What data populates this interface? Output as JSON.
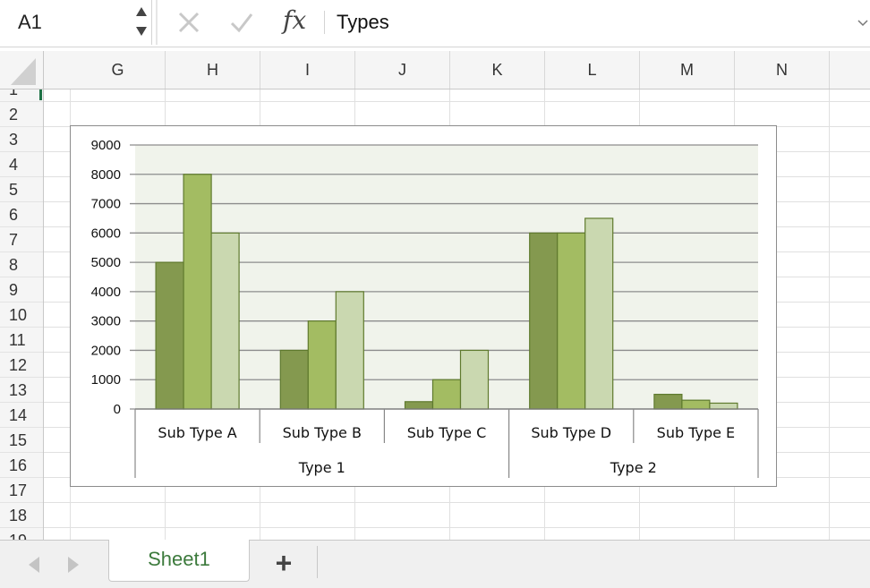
{
  "formula_bar": {
    "name_box": "A1",
    "fx_label": "fx",
    "formula": "Types"
  },
  "grid": {
    "columns": [
      "G",
      "H",
      "I",
      "J",
      "K",
      "L",
      "M",
      "N"
    ],
    "rows": [
      "1",
      "2",
      "3",
      "4",
      "5",
      "6",
      "7",
      "8",
      "9",
      "10",
      "11",
      "12",
      "13",
      "14",
      "15",
      "16",
      "17",
      "18",
      "19"
    ]
  },
  "chart_data": {
    "type": "bar",
    "categories": [
      "Sub Type A",
      "Sub Type B",
      "Sub Type C",
      "Sub Type D",
      "Sub Type E"
    ],
    "groups": [
      {
        "label": "Type 1",
        "categories": [
          "Sub Type A",
          "Sub Type B",
          "Sub Type C"
        ]
      },
      {
        "label": "Type 2",
        "categories": [
          "Sub Type D",
          "Sub Type E"
        ]
      }
    ],
    "series": [
      {
        "values": [
          5000,
          2000,
          250,
          6000,
          500
        ],
        "color": "#84994f"
      },
      {
        "values": [
          8000,
          3000,
          1000,
          6000,
          300
        ],
        "color": "#a3bc62"
      },
      {
        "values": [
          6000,
          4000,
          2000,
          6500,
          200
        ],
        "color": "#cad8b0"
      }
    ],
    "ylim": [
      0,
      9000
    ],
    "yticks": [
      "0",
      "1000",
      "2000",
      "3000",
      "4000",
      "5000",
      "6000",
      "7000",
      "8000",
      "9000"
    ],
    "grid": true,
    "legend": "none",
    "title": "",
    "xlabel": "",
    "ylabel": "",
    "plot_background": "#f0f3eb"
  },
  "sheet_tabs": {
    "active": "Sheet1",
    "add_label": "+"
  }
}
